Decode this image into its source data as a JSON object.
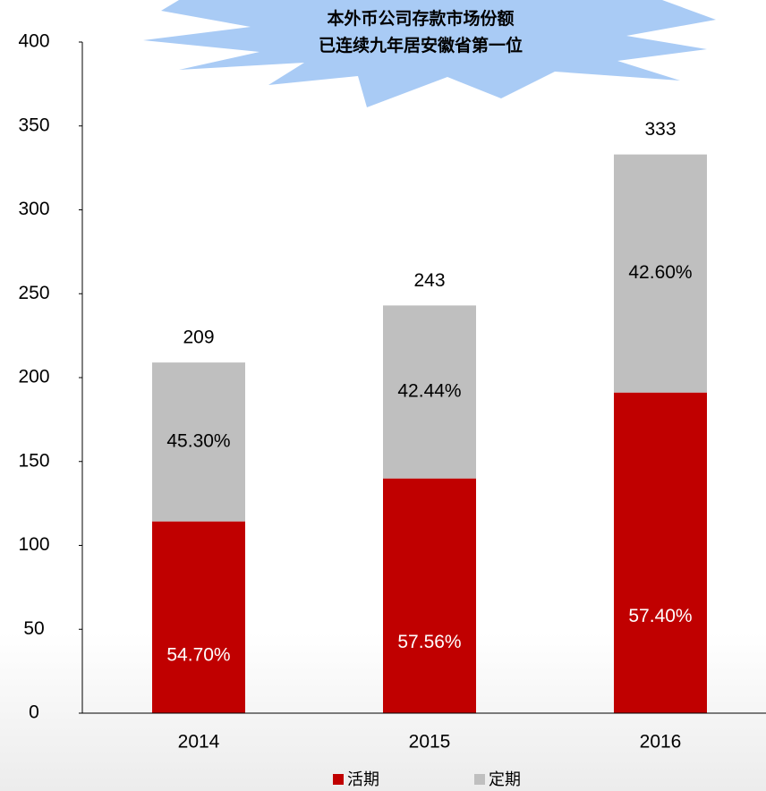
{
  "chart_data": {
    "type": "stacked_bar",
    "annotation": [
      "本外币公司存款市场份额",
      "已连续九年居安徽省第一位"
    ],
    "categories": [
      "2014",
      "2015",
      "2016"
    ],
    "series": [
      {
        "name": "活期",
        "color": "#c00000",
        "values": [
          114.3,
          139.9,
          191.1
        ],
        "share_labels": [
          "54.70%",
          "57.56%",
          "57.40%"
        ]
      },
      {
        "name": "定期",
        "color": "#bfbfbf",
        "values": [
          94.7,
          103.1,
          141.9
        ],
        "share_labels": [
          "45.30%",
          "42.44%",
          "42.60%"
        ]
      }
    ],
    "totals": [
      209,
      243,
      333
    ],
    "ylim": [
      0,
      400
    ],
    "yticks": [
      0,
      50,
      100,
      150,
      200,
      250,
      300,
      350,
      400
    ]
  }
}
